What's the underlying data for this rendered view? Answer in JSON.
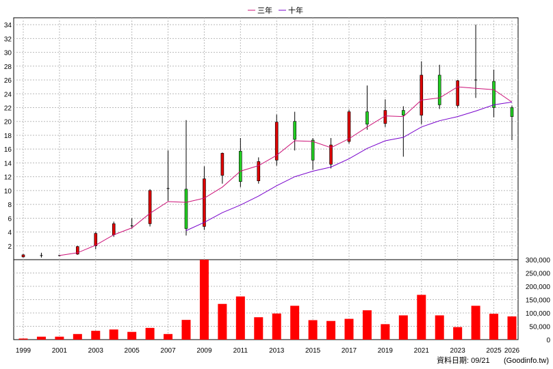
{
  "chart_data": {
    "type": "candlestick-with-volume",
    "legend": [
      {
        "label": "三年",
        "color": "#cc1177"
      },
      {
        "label": "十年",
        "color": "#7700cc"
      }
    ],
    "colors": {
      "up": "#dd0000",
      "down": "#22cc22",
      "volume": "#ff0000"
    },
    "price_axis": {
      "min": 0,
      "max": 35,
      "ticks": [
        2,
        4,
        6,
        8,
        10,
        12,
        14,
        16,
        18,
        20,
        22,
        24,
        26,
        28,
        30,
        32,
        34
      ]
    },
    "volume_axis": {
      "min": 0,
      "max": 300000,
      "ticks": [
        "0",
        "50,000",
        "100,000",
        "150,000",
        "200,000",
        "250,000",
        "300,000"
      ],
      "tick_values": [
        0,
        50000,
        100000,
        150000,
        200000,
        250000,
        300000
      ]
    },
    "x_tick_labels": [
      "1999",
      "2001",
      "2003",
      "2005",
      "2007",
      "2009",
      "2011",
      "2013",
      "2015",
      "2017",
      "2019",
      "2021",
      "2023",
      "2025",
      "2026"
    ],
    "grid": true,
    "candles": [
      {
        "year": 1999,
        "open": 0.4,
        "close": 0.7,
        "high": 0.8,
        "low": 0.3
      },
      {
        "year": 2000,
        "open": 0.6,
        "close": 0.6,
        "high": 1.0,
        "low": 0.3
      },
      {
        "year": 2001,
        "open": 0.6,
        "close": 0.6,
        "high": 0.7,
        "low": 0.5
      },
      {
        "year": 2002,
        "open": 0.8,
        "close": 1.9,
        "high": 2.0,
        "low": 0.7
      },
      {
        "year": 2003,
        "open": 2.0,
        "close": 3.8,
        "high": 4.0,
        "low": 1.5
      },
      {
        "year": 2004,
        "open": 3.6,
        "close": 5.2,
        "high": 5.5,
        "low": 3.3
      },
      {
        "year": 2005,
        "open": 4.9,
        "close": 4.9,
        "high": 6.0,
        "low": 4.5
      },
      {
        "year": 2006,
        "open": 5.2,
        "close": 10.0,
        "high": 10.2,
        "low": 4.8
      },
      {
        "year": 2007,
        "open": 10.3,
        "close": 10.3,
        "high": 15.8,
        "low": 8.5
      },
      {
        "year": 2008,
        "open": 10.2,
        "close": 4.5,
        "high": 20.2,
        "low": 3.5
      },
      {
        "year": 2009,
        "open": 4.8,
        "close": 11.7,
        "high": 13.5,
        "low": 4.3
      },
      {
        "year": 2010,
        "open": 12.2,
        "close": 15.4,
        "high": 15.5,
        "low": 11.0
      },
      {
        "year": 2011,
        "open": 15.7,
        "close": 11.3,
        "high": 17.6,
        "low": 10.5
      },
      {
        "year": 2012,
        "open": 11.4,
        "close": 14.2,
        "high": 14.8,
        "low": 11.0
      },
      {
        "year": 2013,
        "open": 14.4,
        "close": 19.9,
        "high": 21.0,
        "low": 13.6
      },
      {
        "year": 2014,
        "open": 20.0,
        "close": 17.4,
        "high": 21.4,
        "low": 15.8
      },
      {
        "year": 2015,
        "open": 17.3,
        "close": 14.4,
        "high": 17.6,
        "low": 13.0
      },
      {
        "year": 2016,
        "open": 13.8,
        "close": 16.6,
        "high": 17.6,
        "low": 13.2
      },
      {
        "year": 2017,
        "open": 17.1,
        "close": 21.4,
        "high": 21.7,
        "low": 16.8
      },
      {
        "year": 2018,
        "open": 21.4,
        "close": 19.6,
        "high": 25.2,
        "low": 18.8
      },
      {
        "year": 2019,
        "open": 19.7,
        "close": 21.6,
        "high": 23.2,
        "low": 19.2
      },
      {
        "year": 2020,
        "open": 21.6,
        "close": 20.9,
        "high": 22.2,
        "low": 14.9
      },
      {
        "year": 2021,
        "open": 20.9,
        "close": 26.7,
        "high": 28.7,
        "low": 19.6
      },
      {
        "year": 2022,
        "open": 26.7,
        "close": 22.4,
        "high": 28.2,
        "low": 21.8
      },
      {
        "year": 2023,
        "open": 22.3,
        "close": 25.9,
        "high": 26.0,
        "low": 22.0
      },
      {
        "year": 2024,
        "open": 26.0,
        "close": 26.0,
        "high": 34.0,
        "low": 23.4
      },
      {
        "year": 2025,
        "open": 25.8,
        "close": 22.0,
        "high": 27.5,
        "low": 20.6
      },
      {
        "year": 2026,
        "open": 22.0,
        "close": 20.7,
        "high": 22.3,
        "low": 17.3
      }
    ],
    "ma3": [
      {
        "year": 2001,
        "value": 0.6
      },
      {
        "year": 2002,
        "value": 1.0
      },
      {
        "year": 2003,
        "value": 2.1
      },
      {
        "year": 2004,
        "value": 3.6
      },
      {
        "year": 2005,
        "value": 4.6
      },
      {
        "year": 2006,
        "value": 6.7
      },
      {
        "year": 2007,
        "value": 8.4
      },
      {
        "year": 2008,
        "value": 8.3
      },
      {
        "year": 2009,
        "value": 8.9
      },
      {
        "year": 2010,
        "value": 10.5
      },
      {
        "year": 2011,
        "value": 12.8
      },
      {
        "year": 2012,
        "value": 13.6
      },
      {
        "year": 2013,
        "value": 15.1
      },
      {
        "year": 2014,
        "value": 17.2
      },
      {
        "year": 2015,
        "value": 17.1
      },
      {
        "year": 2016,
        "value": 16.2
      },
      {
        "year": 2017,
        "value": 17.5
      },
      {
        "year": 2018,
        "value": 19.2
      },
      {
        "year": 2019,
        "value": 20.8
      },
      {
        "year": 2020,
        "value": 20.7
      },
      {
        "year": 2021,
        "value": 23.1
      },
      {
        "year": 2022,
        "value": 23.4
      },
      {
        "year": 2023,
        "value": 25.0
      },
      {
        "year": 2024,
        "value": 24.8
      },
      {
        "year": 2025,
        "value": 24.6
      },
      {
        "year": 2026,
        "value": 22.8
      }
    ],
    "ma10": [
      {
        "year": 2008,
        "value": 4.2
      },
      {
        "year": 2009,
        "value": 5.4
      },
      {
        "year": 2010,
        "value": 6.8
      },
      {
        "year": 2011,
        "value": 7.9
      },
      {
        "year": 2012,
        "value": 9.2
      },
      {
        "year": 2013,
        "value": 10.7
      },
      {
        "year": 2014,
        "value": 12.0
      },
      {
        "year": 2015,
        "value": 12.8
      },
      {
        "year": 2016,
        "value": 13.4
      },
      {
        "year": 2017,
        "value": 14.6
      },
      {
        "year": 2018,
        "value": 16.1
      },
      {
        "year": 2019,
        "value": 17.2
      },
      {
        "year": 2020,
        "value": 17.7
      },
      {
        "year": 2021,
        "value": 19.2
      },
      {
        "year": 2022,
        "value": 20.1
      },
      {
        "year": 2023,
        "value": 20.7
      },
      {
        "year": 2024,
        "value": 21.5
      },
      {
        "year": 2025,
        "value": 22.4
      },
      {
        "year": 2026,
        "value": 22.8
      }
    ],
    "volume": [
      {
        "year": 1999,
        "value": 4000
      },
      {
        "year": 2000,
        "value": 11000
      },
      {
        "year": 2001,
        "value": 11000
      },
      {
        "year": 2002,
        "value": 21000
      },
      {
        "year": 2003,
        "value": 33000
      },
      {
        "year": 2004,
        "value": 38000
      },
      {
        "year": 2005,
        "value": 29000
      },
      {
        "year": 2006,
        "value": 44000
      },
      {
        "year": 2007,
        "value": 21000
      },
      {
        "year": 2008,
        "value": 74000
      },
      {
        "year": 2009,
        "value": 300000
      },
      {
        "year": 2010,
        "value": 134000
      },
      {
        "year": 2011,
        "value": 162000
      },
      {
        "year": 2012,
        "value": 84000
      },
      {
        "year": 2013,
        "value": 98000
      },
      {
        "year": 2014,
        "value": 127000
      },
      {
        "year": 2015,
        "value": 73000
      },
      {
        "year": 2016,
        "value": 70000
      },
      {
        "year": 2017,
        "value": 78000
      },
      {
        "year": 2018,
        "value": 110000
      },
      {
        "year": 2019,
        "value": 58000
      },
      {
        "year": 2020,
        "value": 91000
      },
      {
        "year": 2021,
        "value": 168000
      },
      {
        "year": 2022,
        "value": 91000
      },
      {
        "year": 2023,
        "value": 47000
      },
      {
        "year": 2024,
        "value": 127000
      },
      {
        "year": 2025,
        "value": 97000
      },
      {
        "year": 2026,
        "value": 87000
      }
    ]
  },
  "footer": {
    "date_label": "資料日期: 09/21",
    "source": "(Goodinfo.tw)"
  }
}
